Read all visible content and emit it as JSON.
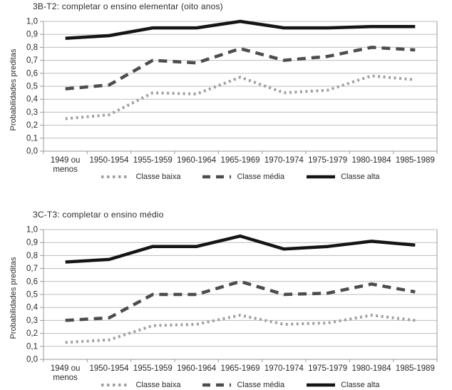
{
  "chart_data": [
    {
      "type": "line",
      "title": "3B-T2: completar o ensino elementar (oito anos)",
      "ylabel": "Probabilidades preditas",
      "xlabel": "",
      "ylim": [
        0.0,
        1.0
      ],
      "y_tick_labels": [
        "0,0",
        "0,1",
        "0,2",
        "0,3",
        "0,4",
        "0,5",
        "0,6",
        "0,7",
        "0,8",
        "0,9",
        "1,0"
      ],
      "grid": "horizontal",
      "legend_position": "bottom",
      "categories": [
        "1949 ou\nmenos",
        "1950-1954",
        "1955-1959",
        "1960-1964",
        "1965-1969",
        "1970-1974",
        "1975-1979",
        "1980-1984",
        "1985-1989"
      ],
      "series": [
        {
          "name": "Classe baixa",
          "style": "dotted",
          "color": "#a0a0a0",
          "values": [
            0.25,
            0.28,
            0.45,
            0.44,
            0.57,
            0.45,
            0.47,
            0.58,
            0.55
          ]
        },
        {
          "name": "Classe média",
          "style": "dashed",
          "color": "#4d4d4d",
          "values": [
            0.48,
            0.51,
            0.7,
            0.68,
            0.79,
            0.7,
            0.73,
            0.8,
            0.78
          ]
        },
        {
          "name": "Classe alta",
          "style": "solid",
          "color": "#151515",
          "values": [
            0.87,
            0.89,
            0.95,
            0.95,
            1.0,
            0.95,
            0.95,
            0.96,
            0.96
          ]
        }
      ]
    },
    {
      "type": "line",
      "title": "3C-T3: completar o ensino médio",
      "ylabel": "Probabilidades preditas",
      "xlabel": "",
      "ylim": [
        0.0,
        1.0
      ],
      "y_tick_labels": [
        "0,0",
        "0,1",
        "0,2",
        "0,3",
        "0,4",
        "0,5",
        "0,6",
        "0,7",
        "0,8",
        "0,9",
        "1,0"
      ],
      "grid": "horizontal",
      "legend_position": "bottom",
      "categories": [
        "1949 ou\nmenos",
        "1950-1954",
        "1955-1959",
        "1960-1964",
        "1965-1969",
        "1970-1974",
        "1975-1979",
        "1980-1984",
        "1985-1989"
      ],
      "series": [
        {
          "name": "Classe baixa",
          "style": "dotted",
          "color": "#a0a0a0",
          "values": [
            0.13,
            0.15,
            0.26,
            0.27,
            0.34,
            0.27,
            0.28,
            0.34,
            0.3
          ]
        },
        {
          "name": "Classe média",
          "style": "dashed",
          "color": "#4d4d4d",
          "values": [
            0.3,
            0.32,
            0.5,
            0.5,
            0.6,
            0.5,
            0.51,
            0.58,
            0.52
          ]
        },
        {
          "name": "Classe alta",
          "style": "solid",
          "color": "#151515",
          "values": [
            0.75,
            0.77,
            0.87,
            0.87,
            0.95,
            0.85,
            0.87,
            0.91,
            0.88
          ]
        }
      ]
    }
  ],
  "style_colors": {
    "gridline": "#bdbdbd",
    "axis": "#9a9a9a",
    "tick_text": "#2b2b2b"
  }
}
